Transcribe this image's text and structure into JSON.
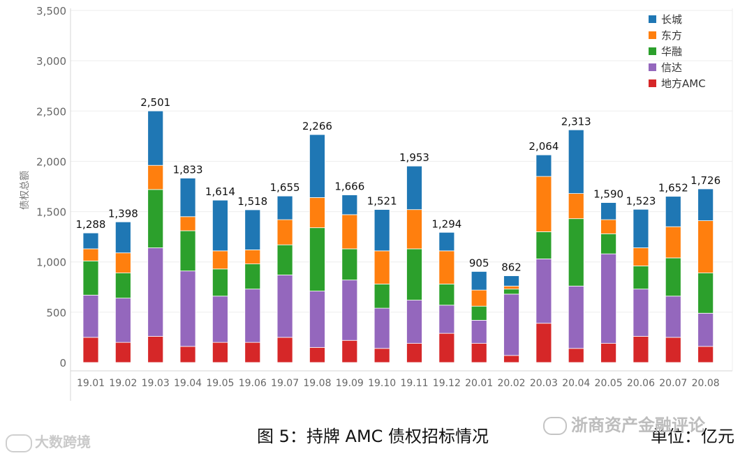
{
  "chart_data": {
    "type": "bar",
    "stacked": true,
    "ylabel": "债权总额",
    "ylim": [
      0,
      3500
    ],
    "yticks": [
      0,
      500,
      1000,
      1500,
      2000,
      2500,
      3000,
      3500
    ],
    "ytick_labels": [
      "0",
      "500",
      "1,000",
      "1,500",
      "2,000",
      "2,500",
      "3,000",
      "3,500"
    ],
    "grid": true,
    "legend_position": "top-right",
    "categories": [
      "19.01",
      "19.02",
      "19.03",
      "19.04",
      "19.05",
      "19.06",
      "19.07",
      "19.08",
      "19.09",
      "19.10",
      "19.11",
      "19.12",
      "20.01",
      "20.02",
      "20.03",
      "20.04",
      "20.05",
      "20.06",
      "20.07",
      "20.08"
    ],
    "totals": [
      1288,
      1398,
      2501,
      1833,
      1614,
      1518,
      1655,
      2266,
      1666,
      1521,
      1953,
      1294,
      905,
      862,
      2064,
      2313,
      1590,
      1523,
      1652,
      1726
    ],
    "total_labels": [
      "1,288",
      "1,398",
      "2,501",
      "1,833",
      "1,614",
      "1,518",
      "1,655",
      "2,266",
      "1,666",
      "1,521",
      "1,953",
      "1,294",
      "905",
      "862",
      "2,064",
      "2,313",
      "1,590",
      "1,523",
      "1,652",
      "1,726"
    ],
    "series": [
      {
        "name": "地方AMC",
        "color": "#d62728",
        "values": [
          250,
          200,
          260,
          160,
          200,
          200,
          250,
          150,
          220,
          140,
          190,
          290,
          190,
          70,
          390,
          140,
          190,
          260,
          250,
          160
        ]
      },
      {
        "name": "信达",
        "color": "#9467bd",
        "values": [
          420,
          440,
          880,
          750,
          460,
          530,
          620,
          560,
          600,
          400,
          430,
          280,
          230,
          610,
          640,
          620,
          890,
          470,
          410,
          330
        ]
      },
      {
        "name": "华融",
        "color": "#2ca02c",
        "values": [
          340,
          250,
          580,
          400,
          270,
          250,
          300,
          630,
          310,
          240,
          510,
          210,
          140,
          50,
          270,
          670,
          200,
          230,
          380,
          400
        ]
      },
      {
        "name": "东方",
        "color": "#ff7f0e",
        "values": [
          120,
          200,
          240,
          140,
          180,
          140,
          250,
          300,
          340,
          330,
          390,
          330,
          160,
          30,
          550,
          250,
          140,
          180,
          310,
          520
        ]
      },
      {
        "name": "长城",
        "color": "#1f77b4",
        "values": [
          158,
          308,
          541,
          383,
          504,
          398,
          235,
          626,
          196,
          411,
          433,
          184,
          185,
          102,
          214,
          633,
          170,
          383,
          302,
          316
        ]
      }
    ],
    "legend_order": [
      "长城",
      "东方",
      "华融",
      "信达",
      "地方AMC"
    ]
  },
  "caption": "图 5：持牌 AMC 债权招标情况",
  "unit": "单位：亿元",
  "watermark_left": "大数跨境",
  "watermark_right": "浙商资产金融评论"
}
